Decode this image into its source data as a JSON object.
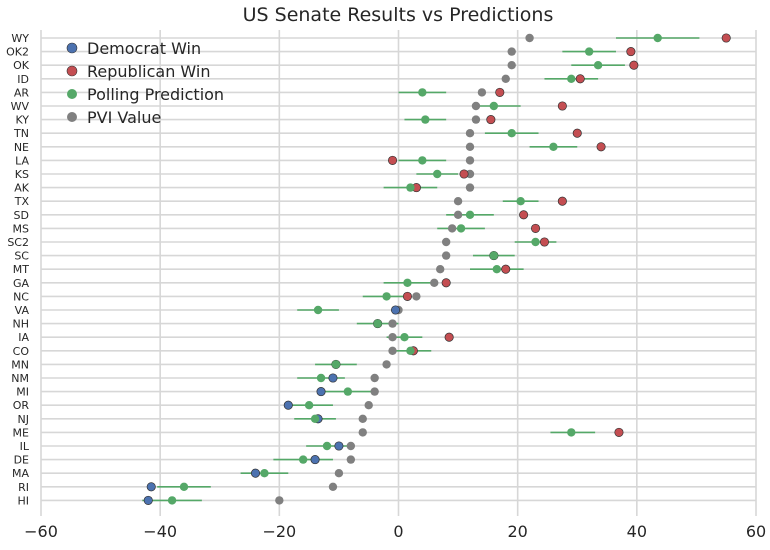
{
  "chart_data": {
    "type": "scatter",
    "title": "US Senate Results vs Predictions",
    "xlabel": "",
    "ylabel": "",
    "xlim": [
      -60,
      60
    ],
    "xticks": [
      -60,
      -40,
      -20,
      0,
      20,
      40,
      60
    ],
    "grid": true,
    "legend_position": "top-left",
    "legend": [
      {
        "name": "Democrat Win",
        "color": "#4c72b0"
      },
      {
        "name": "Republican Win",
        "color": "#c44e52"
      },
      {
        "name": "Polling Prediction",
        "color": "#55a868"
      },
      {
        "name": "PVI Value",
        "color": "#808080"
      }
    ],
    "states": [
      "WY",
      "OK2",
      "OK",
      "ID",
      "AR",
      "WV",
      "KY",
      "TN",
      "NE",
      "LA",
      "KS",
      "AK",
      "TX",
      "SD",
      "MS",
      "SC2",
      "SC",
      "MT",
      "GA",
      "NC",
      "VA",
      "NH",
      "IA",
      "CO",
      "MN",
      "NM",
      "MI",
      "OR",
      "NJ",
      "ME",
      "IL",
      "DE",
      "MA",
      "RI",
      "HI"
    ],
    "series": [
      {
        "name": "PVI Value",
        "color": "#808080",
        "values": [
          22,
          19,
          19,
          18,
          14,
          13,
          13,
          12,
          12,
          12,
          12,
          12,
          10,
          10,
          9,
          8,
          8,
          7,
          6,
          3,
          0,
          -1,
          -1,
          -1,
          -2,
          -4,
          -4,
          -5,
          -6,
          -6,
          -8,
          -8,
          -10,
          -11,
          -20
        ]
      },
      {
        "name": "Polling Prediction",
        "color": "#55a868",
        "values": [
          43.5,
          32,
          33.5,
          29,
          4,
          16,
          4.5,
          19,
          26,
          4,
          6.5,
          2,
          20.5,
          12,
          10.5,
          23,
          16,
          16.5,
          1.5,
          -2,
          -13.5,
          -3.5,
          1,
          2,
          -10.5,
          -13,
          -8.5,
          -15,
          -14,
          29,
          -12,
          -16,
          -22.5,
          -36,
          -38
        ],
        "error_low": [
          36.5,
          27.5,
          29,
          24.5,
          0,
          12.5,
          1,
          14.5,
          22,
          0,
          3,
          -2.5,
          17.5,
          8,
          6.5,
          19.5,
          12.5,
          12,
          -2.5,
          -6,
          -17,
          -7,
          -2,
          -1.5,
          -14,
          -17,
          -12.5,
          -19,
          -17.5,
          25.5,
          -15.5,
          -21,
          -26.5,
          -40.5,
          -43
        ],
        "error_high": [
          50.5,
          36.5,
          38,
          33.5,
          8,
          20.5,
          8,
          23.5,
          30,
          8,
          10,
          6.5,
          23.5,
          16,
          14.5,
          26.5,
          19.5,
          21,
          5.5,
          2,
          -10,
          0,
          4,
          5.5,
          -7,
          -9,
          -4.5,
          -11,
          -10.5,
          33,
          -8.5,
          -11,
          -18.5,
          -31.5,
          -33
        ]
      },
      {
        "name": "Result",
        "values": [
          55,
          39,
          39.5,
          30.5,
          17,
          27.5,
          15.5,
          30,
          34,
          -1,
          11,
          3,
          27.5,
          21,
          23,
          24.5,
          16,
          18,
          8,
          1.5,
          -0.5,
          -3.5,
          8.5,
          2.5,
          -10.5,
          -11,
          -13,
          -18.5,
          -13.5,
          37,
          -10,
          -14,
          -24,
          -41.5,
          -42
        ],
        "winner": [
          "R",
          "R",
          "R",
          "R",
          "R",
          "R",
          "R",
          "R",
          "R",
          "R",
          "R",
          "R",
          "R",
          "R",
          "R",
          "R",
          "R",
          "R",
          "R",
          "R",
          "D",
          "D",
          "R",
          "R",
          "D",
          "D",
          "D",
          "D",
          "D",
          "R",
          "D",
          "D",
          "D",
          "D",
          "D"
        ]
      }
    ]
  }
}
